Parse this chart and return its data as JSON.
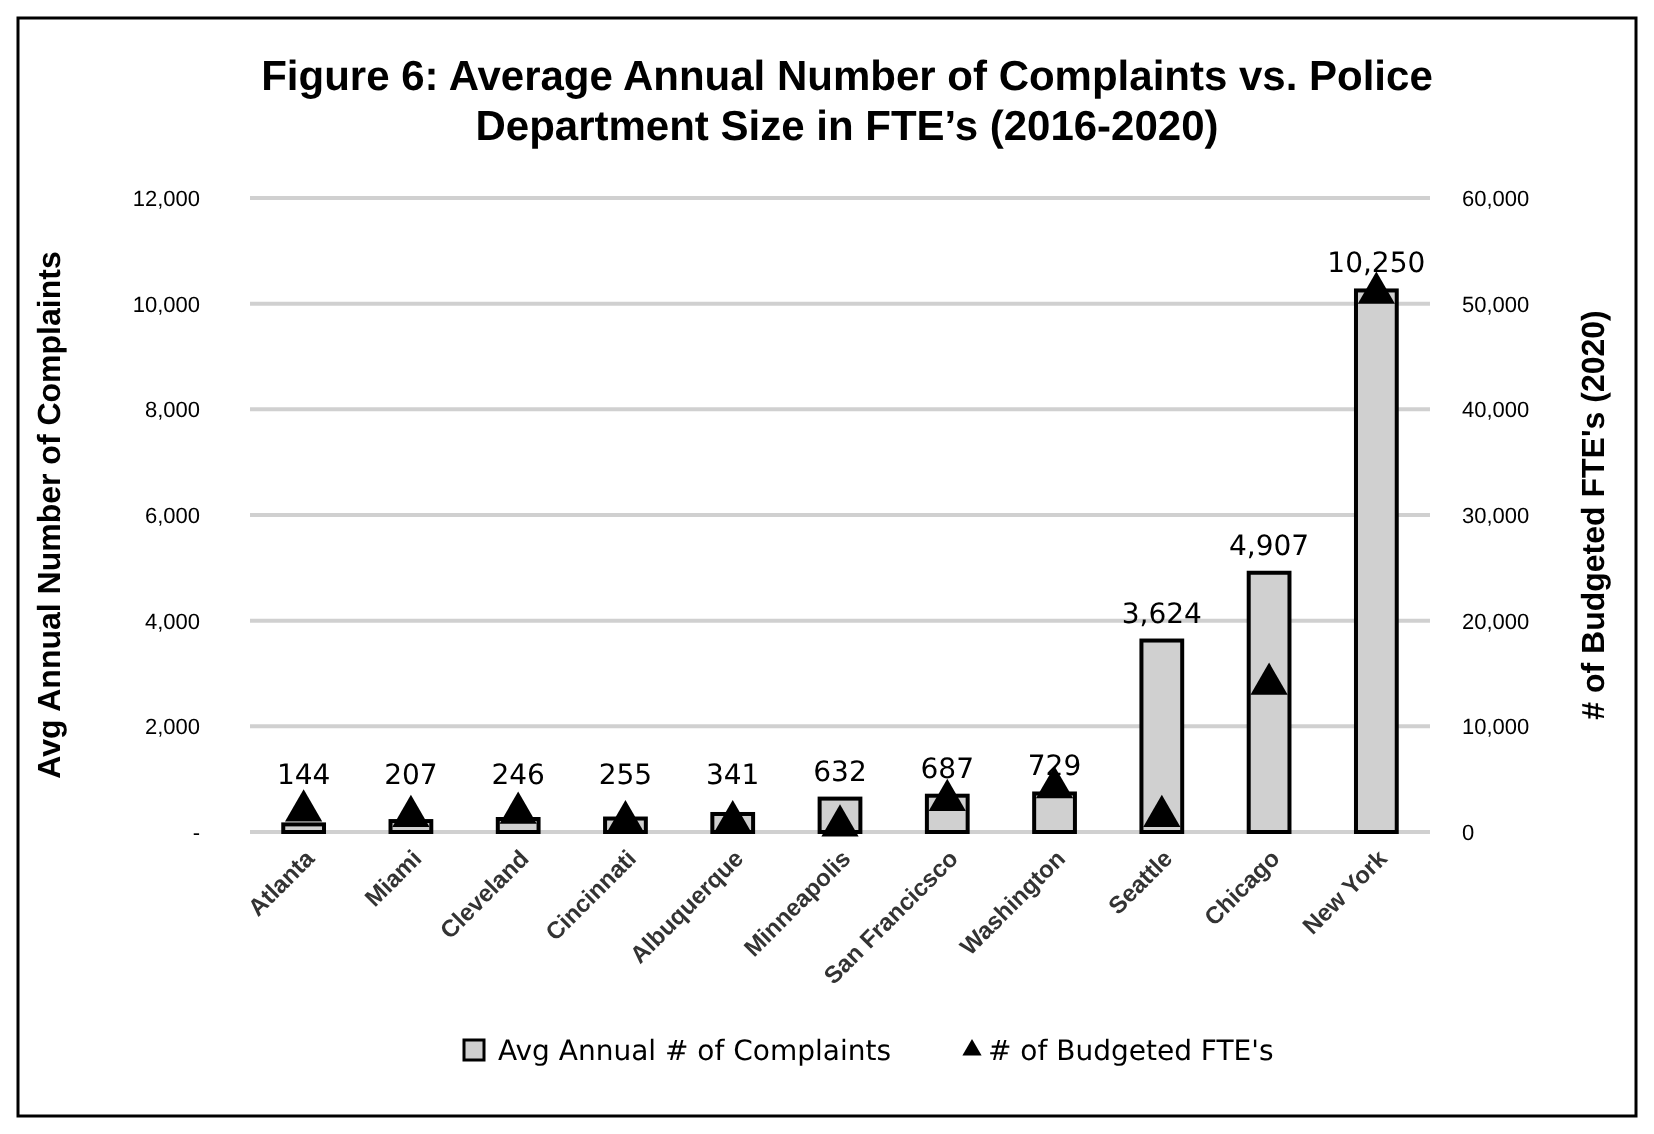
{
  "chart_data": {
    "type": "bar",
    "title": "Figure 6: Average Annual Number of Complaints vs. Police Department Size in FTE’s (2016-2020)",
    "ylabel": "Avg Annual Number of Complaints",
    "y2label": "# of Budgeted FTE's (2020)",
    "categories": [
      "Atlanta",
      "Miami",
      "Cleveland",
      "Cincinnati",
      "Albuquerque",
      "Minneapolis",
      "San Francicsco",
      "Washington",
      "Seattle",
      "Chicago",
      "New York"
    ],
    "series": [
      {
        "name": "Avg Annual # of Complaints",
        "color": "#d0d0d0",
        "values": [
          144,
          207,
          246,
          255,
          341,
          632,
          687,
          729,
          3624,
          4907,
          10250
        ],
        "value_labels": [
          "144",
          "207",
          "246",
          "255",
          "341",
          "632",
          "687",
          "729",
          "3,624",
          "4,907",
          "10,250"
        ]
      },
      {
        "name": "# of Budgeted FTE's",
        "type": "scatter",
        "axis": "y2",
        "color": "#000000",
        "marker": "triangle",
        "values": [
          2000,
          1500,
          1800,
          1000,
          1000,
          600,
          3000,
          4200,
          1500,
          14000,
          51000
        ]
      }
    ],
    "ylim": [
      0,
      12000
    ],
    "yticks": [
      {
        "value": 0,
        "label": "-"
      },
      {
        "value": 2000,
        "label": "2,000"
      },
      {
        "value": 4000,
        "label": "4,000"
      },
      {
        "value": 6000,
        "label": "6,000"
      },
      {
        "value": 8000,
        "label": "8,000"
      },
      {
        "value": 10000,
        "label": "10,000"
      },
      {
        "value": 12000,
        "label": "12,000"
      }
    ],
    "y2lim": [
      0,
      60000
    ],
    "y2ticks": [
      0,
      {
        "value": 10000,
        "label": "10,000"
      },
      {
        "value": 20000,
        "label": "20,000"
      },
      {
        "value": 30000,
        "label": "30,000"
      },
      {
        "value": 40000,
        "label": "40,000"
      },
      {
        "value": 50000,
        "label": "50,000"
      },
      {
        "value": 60000,
        "label": "60,000"
      }
    ],
    "grid": "y",
    "legend": "bottom"
  }
}
